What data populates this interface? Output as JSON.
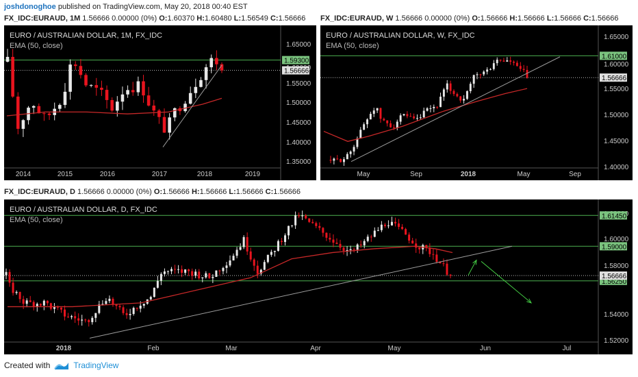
{
  "top_bar": {
    "author": "joshdonoghoe",
    "published": "published on TradingView.com, May 20, 2018 00:40 EST"
  },
  "colors": {
    "background": "#000000",
    "up": "#e8e8e8",
    "down": "#e8141e",
    "ema": "#c62828",
    "hline": "#4caf50",
    "trend": "#9e9e9e",
    "arrow": "#43c943",
    "price_badge": "#e0e0e0",
    "level_badge": "#7bc47f"
  },
  "footer": {
    "created_with": "Created with",
    "brand": "TradingView"
  },
  "charts": [
    {
      "id": "monthly",
      "header": {
        "symbol": "FX_IDC:EURAUD, 1M",
        "values": "1.56666 0.00000 (0%)",
        "o_label": "O:",
        "o": "1.60370",
        "h_label": "H:",
        "h": "1.60480",
        "l_label": "L:",
        "l": "1.56549",
        "c_label": "C:",
        "c": "1.56666"
      },
      "title": "EURO / AUSTRALIAN DOLLAR, 1M, FX_IDC",
      "indicator": "EMA (50, close)",
      "chart_data": {
        "type": "candlestick",
        "x_ticks": [
          "2014",
          "2015",
          "2016",
          "2017",
          "2018",
          "2019"
        ],
        "y_ticks": [
          "1.65000",
          "1.60000",
          "1.55000",
          "1.50000",
          "1.45000",
          "1.40000",
          "1.35000"
        ],
        "ylim": [
          1.32,
          1.675
        ],
        "last_price": "1.56666",
        "levels": [
          {
            "label": "1.59300",
            "value": 1.593
          }
        ],
        "dotted_levels": [
          1.5667
        ],
        "series": [
          {
            "name": "EMA (50, close)"
          }
        ]
      }
    },
    {
      "id": "weekly",
      "header": {
        "symbol": "FX_IDC:EURAUD, W",
        "values": "1.56666 0.00000 (0%)",
        "o_label": "O:",
        "o": "1.56666",
        "h_label": "H:",
        "h": "1.56666",
        "l_label": "L:",
        "l": "1.56666",
        "c_label": "C:",
        "c": "1.56666"
      },
      "title": "EURO / AUSTRALIAN DOLLAR, W, FX_IDC",
      "indicator": "EMA (50, close)",
      "chart_data": {
        "type": "candlestick",
        "x_ticks": [
          "May",
          "Sep",
          "2018",
          "May",
          "Sep"
        ],
        "y_ticks": [
          "1.65000",
          "1.60000",
          "1.55000",
          "1.50000",
          "1.45000",
          "1.40000"
        ],
        "ylim": [
          1.39,
          1.665
        ],
        "last_price": "1.56666",
        "levels": [
          {
            "label": "1.61000",
            "value": 1.61
          }
        ],
        "dotted_levels": [
          1.5667
        ],
        "series": [
          {
            "name": "EMA (50, close)"
          }
        ]
      }
    },
    {
      "id": "daily",
      "header": {
        "symbol": "FX_IDC:EURAUD, D",
        "values": "1.56666 0.00000 (0%)",
        "o_label": "O:",
        "o": "1.56666",
        "h_label": "H:",
        "h": "1.56666",
        "l_label": "L:",
        "l": "1.56666",
        "c_label": "C:",
        "c": "1.56666"
      },
      "title": "EURO / AUSTRALIAN DOLLAR, D, FX_IDC",
      "indicator": "EMA (50, close)",
      "chart_data": {
        "type": "candlestick",
        "x_ticks": [
          "2018",
          "Feb",
          "Mar",
          "Apr",
          "May",
          "Jun",
          "Jul"
        ],
        "y_ticks": [
          "1.62000",
          "1.60000",
          "1.58000",
          "1.54000",
          "1.52000"
        ],
        "ylim": [
          1.515,
          1.625
        ],
        "last_price": "1.56666",
        "levels": [
          {
            "label": "1.61450",
            "value": 1.6145
          },
          {
            "label": "1.59000",
            "value": 1.59
          },
          {
            "label": "1.56250",
            "value": 1.5625
          }
        ],
        "dotted_levels": [
          1.5667
        ],
        "series": [
          {
            "name": "EMA (50, close)"
          }
        ]
      }
    }
  ]
}
